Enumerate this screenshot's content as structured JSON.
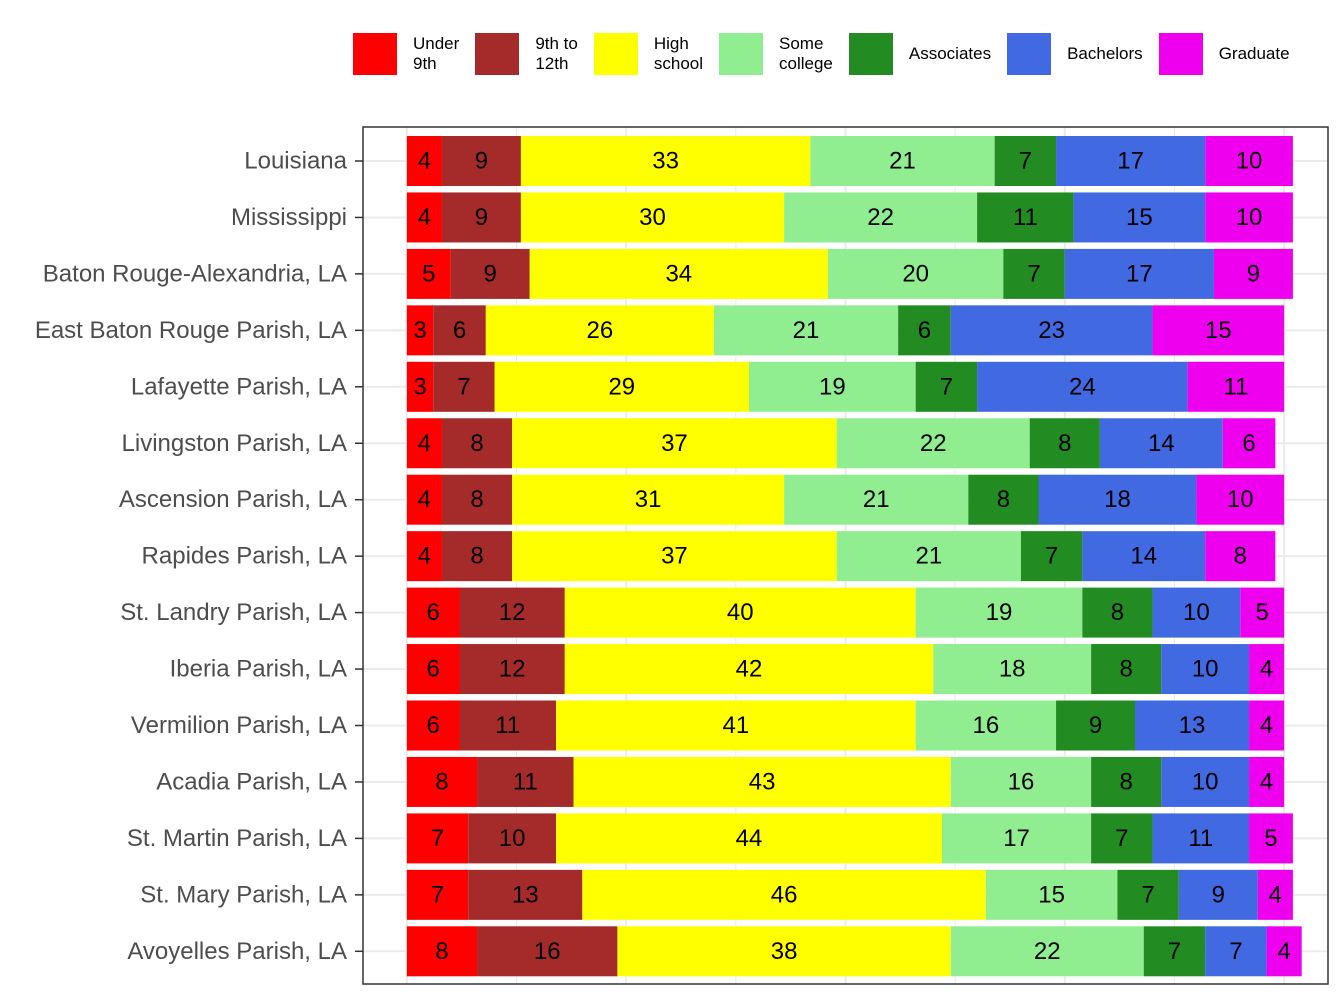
{
  "chart_data": {
    "type": "stacked_bar_horizontal",
    "categories": [
      "Louisiana",
      "Mississippi",
      "Baton Rouge-Alexandria, LA",
      "East Baton Rouge Parish, LA",
      "Lafayette Parish, LA",
      "Livingston Parish, LA",
      "Ascension Parish, LA",
      "Rapides Parish, LA",
      "St. Landry Parish, LA",
      "Iberia Parish, LA",
      "Vermilion Parish, LA",
      "Acadia Parish, LA",
      "St. Martin Parish, LA",
      "St. Mary Parish, LA",
      "Avoyelles Parish, LA"
    ],
    "series": [
      {
        "name": "Under\n9th",
        "color": "#ff0000",
        "values": [
          4,
          4,
          5,
          3,
          3,
          4,
          4,
          4,
          6,
          6,
          6,
          8,
          7,
          7,
          8
        ]
      },
      {
        "name": "9th to\n12th",
        "color": "#a52a2a",
        "values": [
          9,
          9,
          9,
          6,
          7,
          8,
          8,
          8,
          12,
          12,
          11,
          11,
          10,
          13,
          16
        ]
      },
      {
        "name": "High\nschool",
        "color": "#ffff00",
        "values": [
          33,
          30,
          34,
          26,
          29,
          37,
          31,
          37,
          40,
          42,
          41,
          43,
          44,
          46,
          38
        ]
      },
      {
        "name": "Some\ncollege",
        "color": "#90ee90",
        "values": [
          21,
          22,
          20,
          21,
          19,
          22,
          21,
          21,
          19,
          18,
          16,
          16,
          17,
          15,
          22
        ]
      },
      {
        "name": "Associates",
        "color": "#228b22",
        "values": [
          7,
          11,
          7,
          6,
          7,
          8,
          8,
          7,
          8,
          8,
          9,
          8,
          7,
          7,
          7
        ]
      },
      {
        "name": "Bachelors",
        "color": "#4169e1",
        "values": [
          17,
          15,
          17,
          23,
          24,
          14,
          18,
          14,
          10,
          10,
          13,
          10,
          11,
          9,
          7
        ]
      },
      {
        "name": "Graduate",
        "color": "#ee00ee",
        "values": [
          10,
          10,
          9,
          15,
          11,
          6,
          10,
          8,
          5,
          4,
          4,
          4,
          5,
          4,
          4
        ]
      }
    ],
    "xlim": [
      -5,
      105
    ],
    "xgrid": [
      0,
      12.5,
      25,
      37.5,
      50,
      62.5,
      75,
      87.5,
      100
    ],
    "grid": true,
    "legend": "top"
  }
}
